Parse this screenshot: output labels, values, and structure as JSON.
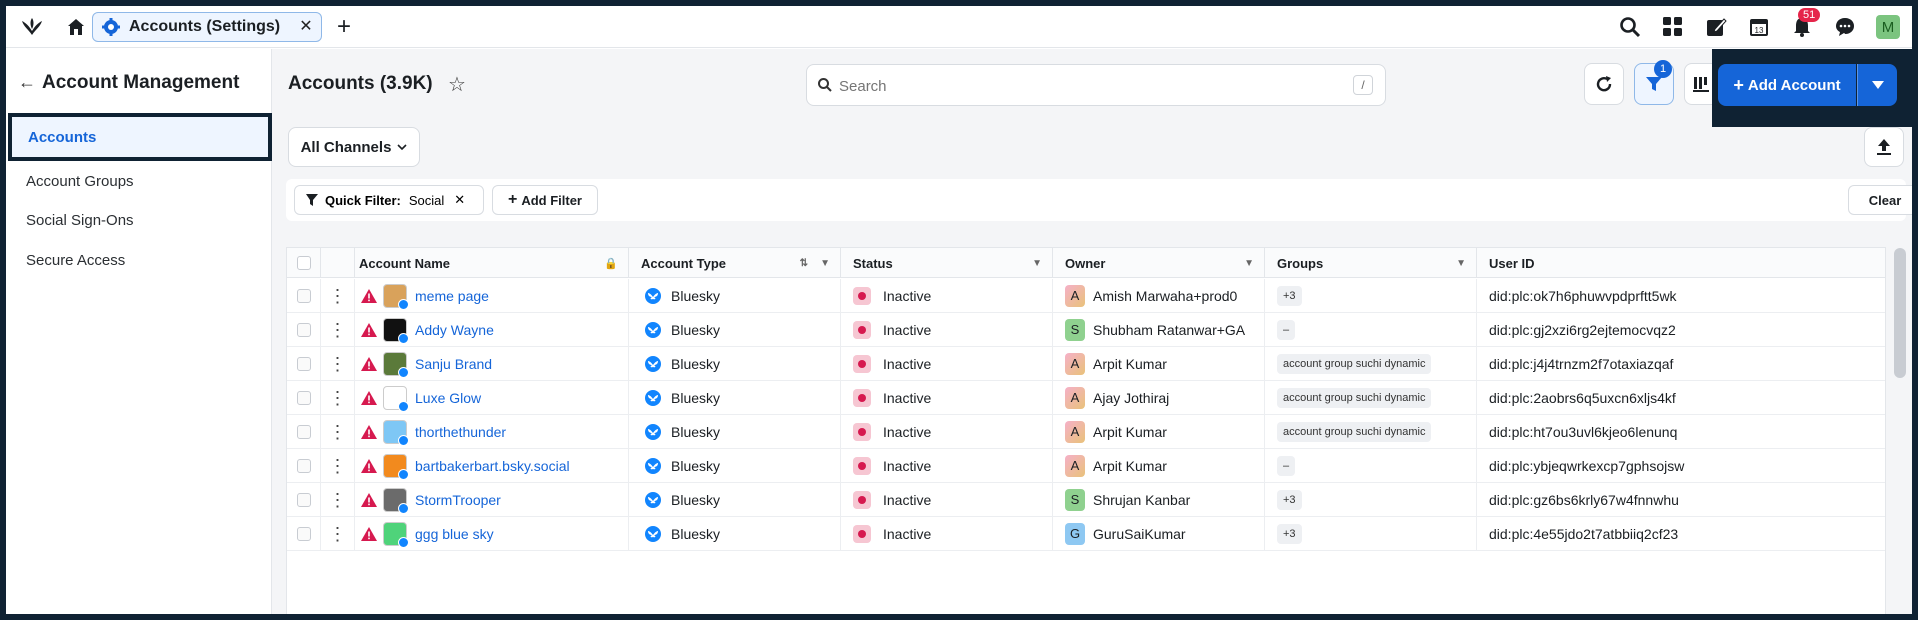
{
  "topbar": {
    "tab_label": "Accounts (Settings)",
    "notifications_count": "51",
    "user_initial": "M"
  },
  "sidebar": {
    "title": "Account Management",
    "items": [
      {
        "label": "Accounts",
        "active": true
      },
      {
        "label": "Account Groups"
      },
      {
        "label": "Social Sign-Ons"
      },
      {
        "label": "Secure Access"
      }
    ]
  },
  "header": {
    "title": "Accounts (3.9K)",
    "search_placeholder": "Search",
    "search_shortcut": "/",
    "filter_count": "1",
    "add_label": "Add Account",
    "channels_label": "All Channels"
  },
  "filters": {
    "quick_filter_label": "Quick Filter:",
    "quick_filter_value": "Social",
    "add_filter_label": "Add Filter",
    "clear_label": "Clear"
  },
  "table": {
    "columns": [
      "Account Name",
      "Account Type",
      "Status",
      "Owner",
      "Groups",
      "User ID"
    ],
    "rows": [
      {
        "name": "meme page",
        "type": "Bluesky",
        "status": "Inactive",
        "owner_initial": "A",
        "owner": "Amish Marwaha+prod0",
        "groups": "+3",
        "user_id": "did:plc:ok7h6phuwvpdprftt5wk"
      },
      {
        "name": "Addy Wayne",
        "type": "Bluesky",
        "status": "Inactive",
        "owner_initial": "S",
        "owner": "Shubham Ratanwar+GA",
        "groups": "–",
        "user_id": "did:plc:gj2xzi6rg2ejtemocvqz2"
      },
      {
        "name": "Sanju Brand",
        "type": "Bluesky",
        "status": "Inactive",
        "owner_initial": "A",
        "owner": "Arpit Kumar",
        "groups": "account group suchi dynamic",
        "user_id": "did:plc:j4j4trnzm2f7otaxiazqaf"
      },
      {
        "name": "Luxe Glow",
        "type": "Bluesky",
        "status": "Inactive",
        "owner_initial": "A",
        "owner": "Ajay Jothiraj",
        "groups": "account group suchi dynamic",
        "user_id": "did:plc:2aobrs6q5uxcn6xljs4kf"
      },
      {
        "name": "thorthethunder",
        "type": "Bluesky",
        "status": "Inactive",
        "owner_initial": "A",
        "owner": "Arpit Kumar",
        "groups": "account group suchi dynamic",
        "user_id": "did:plc:ht7ou3uvl6kjeo6lenunq"
      },
      {
        "name": "bartbakerbart.bsky.social",
        "type": "Bluesky",
        "status": "Inactive",
        "owner_initial": "A",
        "owner": "Arpit Kumar",
        "groups": "–",
        "user_id": "did:plc:ybjeqwrkexcp7gphsojsw"
      },
      {
        "name": "StormTrooper",
        "type": "Bluesky",
        "status": "Inactive",
        "owner_initial": "S",
        "owner": "Shrujan Kanbar",
        "groups": "+3",
        "user_id": "did:plc:gz6bs6krly67w4fnnwhu"
      },
      {
        "name": "ggg blue sky",
        "type": "Bluesky",
        "status": "Inactive",
        "owner_initial": "G",
        "owner": "GuruSaiKumar",
        "groups": "+3",
        "user_id": "did:plc:4e55jdo2t7atbbiiq2cf23"
      }
    ]
  },
  "colors": {
    "accent": "#1565d8",
    "bluesky": "#1185fe",
    "inactive": "#d6194f"
  }
}
